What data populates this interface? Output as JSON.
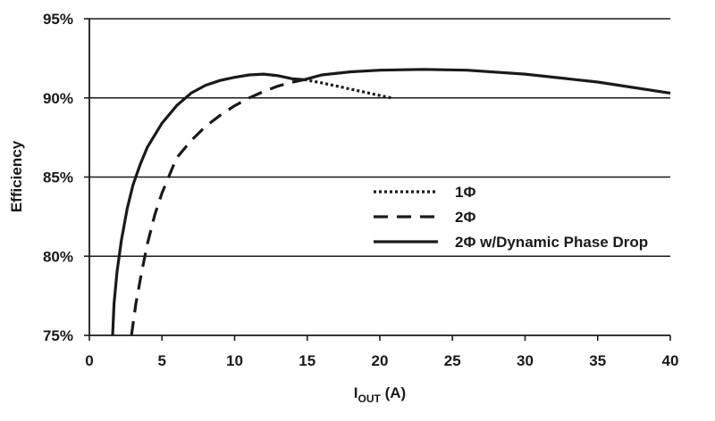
{
  "chart_data": {
    "type": "line",
    "title": "",
    "xlabel_main": "I",
    "xlabel_sub": "OUT",
    "xlabel_unit": " (A)",
    "ylabel": "Efficiency",
    "xlim": [
      0,
      40
    ],
    "ylim": [
      75,
      95
    ],
    "x_ticks": [
      "0",
      "5",
      "10",
      "15",
      "20",
      "25",
      "30",
      "35",
      "40"
    ],
    "y_ticks": [
      "75%",
      "80%",
      "85%",
      "90%",
      "95%"
    ],
    "y_tick_values": [
      75,
      80,
      85,
      90,
      95
    ],
    "x_tick_values": [
      0,
      5,
      10,
      15,
      20,
      25,
      30,
      35,
      40
    ],
    "grid": "horizontal",
    "legend_position": "center-right",
    "series": [
      {
        "name": "1Φ",
        "style": "dotted",
        "x": [
          14.8,
          16,
          17,
          18,
          19,
          20,
          20.8
        ],
        "y": [
          91.15,
          90.95,
          90.75,
          90.55,
          90.35,
          90.15,
          90.0
        ]
      },
      {
        "name": "2Φ",
        "style": "dashed",
        "x": [
          2.9,
          3.2,
          3.6,
          4.0,
          4.5,
          5.0,
          6.0,
          7.0,
          8.0,
          9.0,
          10.0,
          11.0,
          12.0,
          13.0,
          14.0,
          14.8
        ],
        "y": [
          75.0,
          77.0,
          79.0,
          80.8,
          82.6,
          84.0,
          86.2,
          87.3,
          88.2,
          88.9,
          89.5,
          90.0,
          90.4,
          90.75,
          91.0,
          91.15
        ]
      },
      {
        "name": "2Φ w/Dynamic Phase Drop",
        "style": "solid",
        "x": [
          1.6,
          1.7,
          1.9,
          2.2,
          2.6,
          3.0,
          3.5,
          4.0,
          5.0,
          6.0,
          7.0,
          8.0,
          9.0,
          10.0,
          11.0,
          12.0,
          13.0,
          14.0,
          14.8,
          16.0,
          18.0,
          20.0,
          23.0,
          26.0,
          30.0,
          35.0,
          40.0
        ],
        "y": [
          75.0,
          77.0,
          79.0,
          81.0,
          83.0,
          84.5,
          85.8,
          86.9,
          88.4,
          89.5,
          90.3,
          90.8,
          91.1,
          91.3,
          91.45,
          91.5,
          91.4,
          91.2,
          91.15,
          91.45,
          91.65,
          91.75,
          91.8,
          91.75,
          91.5,
          91.0,
          90.3
        ]
      }
    ]
  }
}
